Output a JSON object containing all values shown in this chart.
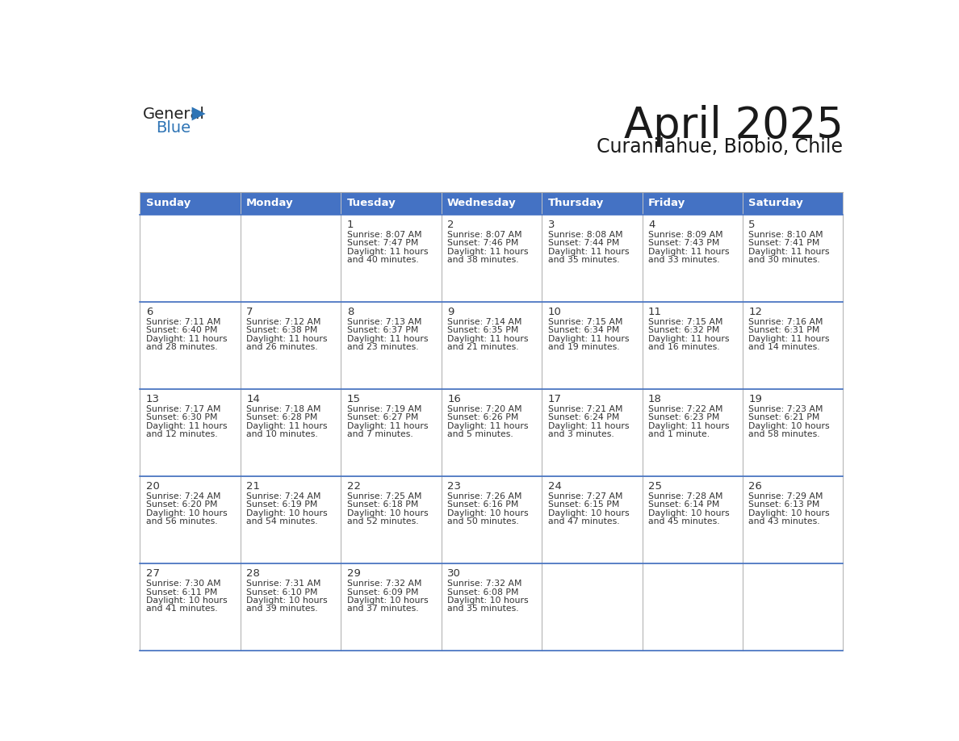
{
  "title": "April 2025",
  "subtitle": "Curanilahue, Biobio, Chile",
  "days_of_week": [
    "Sunday",
    "Monday",
    "Tuesday",
    "Wednesday",
    "Thursday",
    "Friday",
    "Saturday"
  ],
  "header_bg": "#4472C4",
  "header_text": "#FFFFFF",
  "cell_bg": "#FFFFFF",
  "day_number_color": "#333333",
  "text_color": "#333333",
  "border_color": "#AAAAAA",
  "blue_line_color": "#4472C4",
  "logo_general_color": "#222222",
  "logo_blue_color": "#2E74B5",
  "calendar": [
    [
      {
        "day": null,
        "sunrise": null,
        "sunset": null,
        "daylight": null
      },
      {
        "day": null,
        "sunrise": null,
        "sunset": null,
        "daylight": null
      },
      {
        "day": 1,
        "sunrise": "8:07 AM",
        "sunset": "7:47 PM",
        "daylight": "11 hours and 40 minutes."
      },
      {
        "day": 2,
        "sunrise": "8:07 AM",
        "sunset": "7:46 PM",
        "daylight": "11 hours and 38 minutes."
      },
      {
        "day": 3,
        "sunrise": "8:08 AM",
        "sunset": "7:44 PM",
        "daylight": "11 hours and 35 minutes."
      },
      {
        "day": 4,
        "sunrise": "8:09 AM",
        "sunset": "7:43 PM",
        "daylight": "11 hours and 33 minutes."
      },
      {
        "day": 5,
        "sunrise": "8:10 AM",
        "sunset": "7:41 PM",
        "daylight": "11 hours and 30 minutes."
      }
    ],
    [
      {
        "day": 6,
        "sunrise": "7:11 AM",
        "sunset": "6:40 PM",
        "daylight": "11 hours and 28 minutes."
      },
      {
        "day": 7,
        "sunrise": "7:12 AM",
        "sunset": "6:38 PM",
        "daylight": "11 hours and 26 minutes."
      },
      {
        "day": 8,
        "sunrise": "7:13 AM",
        "sunset": "6:37 PM",
        "daylight": "11 hours and 23 minutes."
      },
      {
        "day": 9,
        "sunrise": "7:14 AM",
        "sunset": "6:35 PM",
        "daylight": "11 hours and 21 minutes."
      },
      {
        "day": 10,
        "sunrise": "7:15 AM",
        "sunset": "6:34 PM",
        "daylight": "11 hours and 19 minutes."
      },
      {
        "day": 11,
        "sunrise": "7:15 AM",
        "sunset": "6:32 PM",
        "daylight": "11 hours and 16 minutes."
      },
      {
        "day": 12,
        "sunrise": "7:16 AM",
        "sunset": "6:31 PM",
        "daylight": "11 hours and 14 minutes."
      }
    ],
    [
      {
        "day": 13,
        "sunrise": "7:17 AM",
        "sunset": "6:30 PM",
        "daylight": "11 hours and 12 minutes."
      },
      {
        "day": 14,
        "sunrise": "7:18 AM",
        "sunset": "6:28 PM",
        "daylight": "11 hours and 10 minutes."
      },
      {
        "day": 15,
        "sunrise": "7:19 AM",
        "sunset": "6:27 PM",
        "daylight": "11 hours and 7 minutes."
      },
      {
        "day": 16,
        "sunrise": "7:20 AM",
        "sunset": "6:26 PM",
        "daylight": "11 hours and 5 minutes."
      },
      {
        "day": 17,
        "sunrise": "7:21 AM",
        "sunset": "6:24 PM",
        "daylight": "11 hours and 3 minutes."
      },
      {
        "day": 18,
        "sunrise": "7:22 AM",
        "sunset": "6:23 PM",
        "daylight": "11 hours and 1 minute."
      },
      {
        "day": 19,
        "sunrise": "7:23 AM",
        "sunset": "6:21 PM",
        "daylight": "10 hours and 58 minutes."
      }
    ],
    [
      {
        "day": 20,
        "sunrise": "7:24 AM",
        "sunset": "6:20 PM",
        "daylight": "10 hours and 56 minutes."
      },
      {
        "day": 21,
        "sunrise": "7:24 AM",
        "sunset": "6:19 PM",
        "daylight": "10 hours and 54 minutes."
      },
      {
        "day": 22,
        "sunrise": "7:25 AM",
        "sunset": "6:18 PM",
        "daylight": "10 hours and 52 minutes."
      },
      {
        "day": 23,
        "sunrise": "7:26 AM",
        "sunset": "6:16 PM",
        "daylight": "10 hours and 50 minutes."
      },
      {
        "day": 24,
        "sunrise": "7:27 AM",
        "sunset": "6:15 PM",
        "daylight": "10 hours and 47 minutes."
      },
      {
        "day": 25,
        "sunrise": "7:28 AM",
        "sunset": "6:14 PM",
        "daylight": "10 hours and 45 minutes."
      },
      {
        "day": 26,
        "sunrise": "7:29 AM",
        "sunset": "6:13 PM",
        "daylight": "10 hours and 43 minutes."
      }
    ],
    [
      {
        "day": 27,
        "sunrise": "7:30 AM",
        "sunset": "6:11 PM",
        "daylight": "10 hours and 41 minutes."
      },
      {
        "day": 28,
        "sunrise": "7:31 AM",
        "sunset": "6:10 PM",
        "daylight": "10 hours and 39 minutes."
      },
      {
        "day": 29,
        "sunrise": "7:32 AM",
        "sunset": "6:09 PM",
        "daylight": "10 hours and 37 minutes."
      },
      {
        "day": 30,
        "sunrise": "7:32 AM",
        "sunset": "6:08 PM",
        "daylight": "10 hours and 35 minutes."
      },
      {
        "day": null,
        "sunrise": null,
        "sunset": null,
        "daylight": null
      },
      {
        "day": null,
        "sunrise": null,
        "sunset": null,
        "daylight": null
      },
      {
        "day": null,
        "sunrise": null,
        "sunset": null,
        "daylight": null
      }
    ]
  ]
}
